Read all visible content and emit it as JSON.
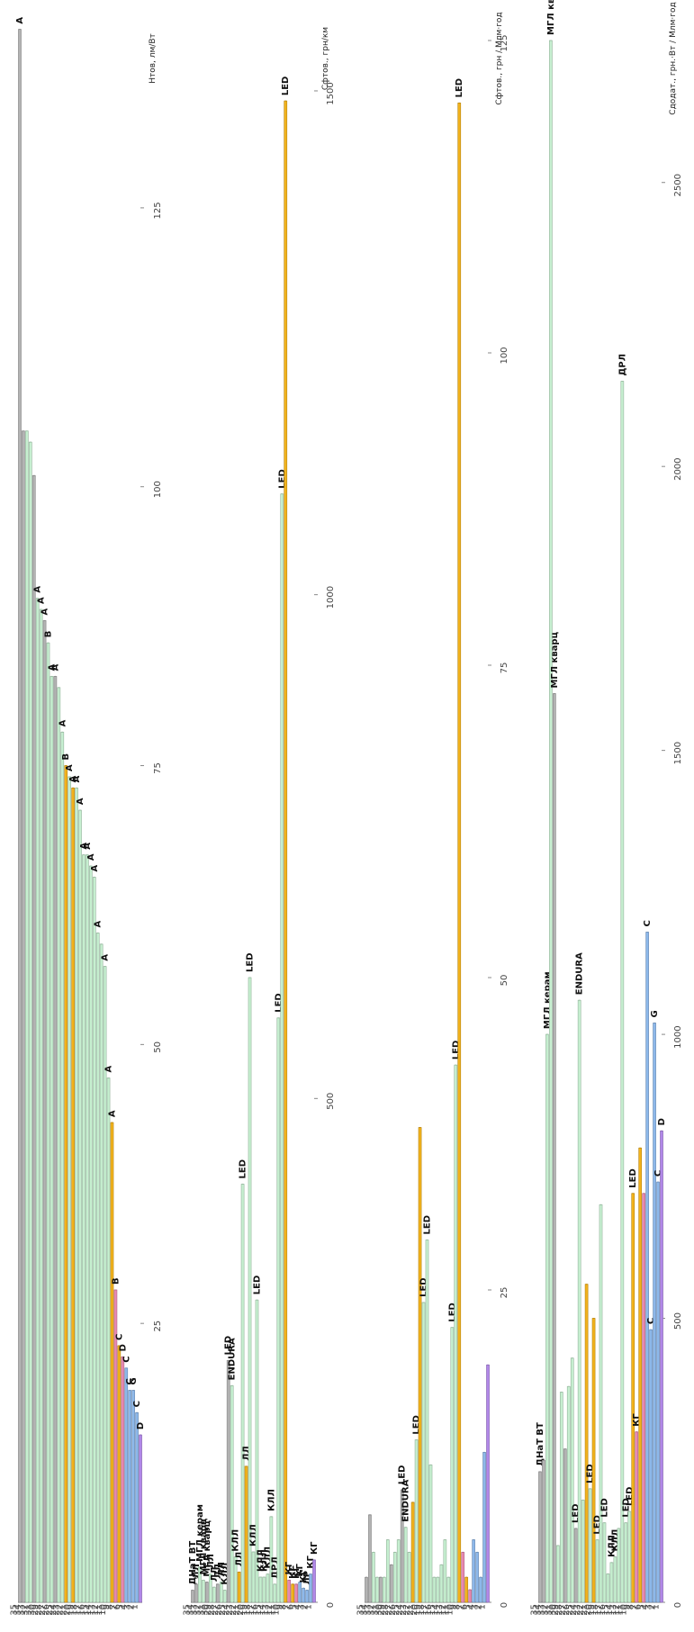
{
  "palette": {
    "gray": "#b3b3b3",
    "green": "#c6efd0",
    "yellow": "#f2b21c",
    "pink": "#e889b0",
    "blue": "#8db8ea",
    "purple": "#b188e8"
  },
  "category_numbers": [
    "35",
    "34",
    "33",
    "32",
    "31",
    "30",
    "29",
    "28",
    "27",
    "26",
    "25",
    "24",
    "23",
    "22",
    "21",
    "20",
    "19",
    "18",
    "17",
    "16",
    "15",
    "14",
    "13",
    "12",
    "11",
    "10",
    "9",
    "8",
    "7",
    "6",
    "5",
    "4",
    "3",
    "2",
    "1"
  ],
  "color_by_number": {
    "35": "gray",
    "34": "gray",
    "33": "green",
    "32": "green",
    "31": "gray",
    "30": "green",
    "29": "green",
    "28": "gray",
    "27": "green",
    "26": "green",
    "25": "gray",
    "24": "green",
    "23": "green",
    "22": "yellow",
    "21": "green",
    "20": "yellow",
    "19": "green",
    "18": "green",
    "17": "green",
    "16": "green",
    "15": "green",
    "14": "green",
    "13": "green",
    "12": "green",
    "11": "green",
    "10": "green",
    "9": "yellow",
    "8": "pink",
    "7": "yellow",
    "6": "pink",
    "5": "blue",
    "4": "blue",
    "3": "blue",
    "2": "blue",
    "1": "purple"
  },
  "chart_data": [
    {
      "type": "bar",
      "orientation": "horizontal",
      "xlabel": "Hтов, лм/Вт",
      "xlim": [
        0,
        140
      ],
      "xticks": [
        "25",
        "50",
        "75",
        "100",
        "125"
      ],
      "xtick_values": [
        25,
        50,
        75,
        100,
        125
      ],
      "values": {
        "35": 141,
        "34": 105,
        "33": 105,
        "32": 104,
        "31": 101,
        "30": 90,
        "29": 89,
        "28": 88,
        "27": 86,
        "26": 83,
        "25": 83,
        "24": 82,
        "23": 78,
        "22": 75,
        "21": 74,
        "20": 73,
        "19": 73,
        "18": 71,
        "17": 67,
        "16": 67,
        "15": 66,
        "14": 65,
        "13": 60,
        "12": 59,
        "11": 57,
        "10": 47,
        "9": 43,
        "8": 28,
        "7": 23,
        "6": 22,
        "5": 21,
        "4": 19,
        "3": 19,
        "2": 17,
        "1": 15
      },
      "labels": {
        "35": "A",
        "30": "A",
        "29": "A",
        "28": "A",
        "27": "B",
        "26": "A",
        "25": "A",
        "23": "A",
        "22": "B",
        "21": "A",
        "20": "A",
        "19": "A",
        "18": "A",
        "17": "A",
        "16": "A",
        "15": "A",
        "14": "A",
        "13": "A",
        "11": "A",
        "10": "A",
        "9": "A",
        "8": "B",
        "7": "C",
        "6": "D",
        "5": "C",
        "4": "C",
        "3": "G",
        "2": "C",
        "1": "D"
      }
    },
    {
      "type": "bar",
      "orientation": "horizontal",
      "xlabel": "Cфтов., грн/км",
      "xlim": [
        0,
        1550
      ],
      "xticks": [
        "0",
        "500",
        "1000",
        "1500"
      ],
      "xtick_values": [
        0,
        500,
        1000,
        1500
      ],
      "values": {
        "35": 12,
        "34": 18,
        "33": 35,
        "32": 22,
        "31": 20,
        "30": 28,
        "29": 15,
        "28": 18,
        "27": 20,
        "26": 12,
        "25": 240,
        "24": 215,
        "23": 45,
        "22": 30,
        "21": 415,
        "20": 135,
        "19": 620,
        "18": 50,
        "17": 300,
        "16": 25,
        "15": 25,
        "14": 28,
        "13": 85,
        "12": 18,
        "11": 580,
        "10": 1100,
        "9": 1490,
        "8": 22,
        "7": 18,
        "6": 18,
        "5": 20,
        "4": 14,
        "3": 12,
        "2": 28,
        "1": 42
      },
      "labels": {
        "35": "ДНаТ ВТ",
        "34": "ЛЛ",
        "33": "МГЛ керам",
        "32": "МГЛ кварц",
        "31": "МГЛ кварц",
        "30": "ЛЛ",
        "29": "ЛЛ",
        "28": "ЛЛ",
        "27": "ЛЛ",
        "26": "КЛЛ",
        "25": "LED",
        "24": "ENDURA",
        "23": "КЛЛ",
        "22": "ЛЛ",
        "21": "LED",
        "20": "ЛЛ",
        "19": "LED",
        "18": "КЛЛ",
        "17": "LED",
        "16": "КЛЛ",
        "15": "КЛЛ",
        "14": "КЛЛ",
        "13": "КЛЛ",
        "12": "ДРЛ",
        "11": "LED",
        "10": "LED",
        "9": "LED",
        "8": "КГ",
        "7": "КГ",
        "6": "КГ",
        "5": "КГ",
        "4": "КГ",
        "3": "ЛР",
        "2": "КГ",
        "1": "КГ"
      }
    },
    {
      "type": "bar",
      "orientation": "horizontal",
      "xlabel": "Cфтов., грн / Млм·год",
      "xlim": [
        0,
        125
      ],
      "xticks": [
        "0",
        "25",
        "50",
        "75",
        "100",
        "125"
      ],
      "xtick_values": [
        0,
        25,
        50,
        75,
        100,
        125
      ],
      "values": {
        "35": 2,
        "34": 7,
        "33": 4,
        "32": 2,
        "31": 2,
        "30": 2,
        "29": 5,
        "28": 3,
        "27": 4,
        "26": 5,
        "25": 9,
        "24": 6,
        "23": 4,
        "22": 8,
        "21": 13,
        "20": 38,
        "19": 24,
        "18": 29,
        "17": 11,
        "16": 2,
        "15": 2,
        "14": 3,
        "13": 5,
        "12": 2,
        "11": 22,
        "10": 43,
        "9": 120,
        "8": 4,
        "7": 2,
        "6": 1,
        "5": 5,
        "4": 4,
        "3": 2,
        "2": 12,
        "1": 19
      },
      "labels": {
        "25": "LED",
        "24": "ENDURA",
        "21": "LED",
        "19": "LED",
        "18": "LED",
        "11": "LED",
        "10": "LED",
        "9": "LED"
      }
    },
    {
      "type": "bar",
      "orientation": "horizontal",
      "xlabel": "Cдодат., грн.·Вт / Млм·год",
      "xlim": [
        0,
        2750
      ],
      "xticks": [
        "0",
        "500",
        "1000",
        "1500",
        "2000",
        "2500"
      ],
      "xtick_values": [
        0,
        500,
        1000,
        1500,
        2000,
        2500
      ],
      "values": {
        "35": 230,
        "34": 250,
        "33": 1000,
        "32": 2750,
        "31": 1600,
        "30": 100,
        "29": 370,
        "28": 270,
        "27": 380,
        "26": 430,
        "25": 130,
        "24": 1060,
        "23": 180,
        "22": 560,
        "21": 200,
        "20": 500,
        "19": 110,
        "18": 700,
        "17": 140,
        "16": 50,
        "15": 70,
        "14": 80,
        "13": 130,
        "12": 2150,
        "11": 140,
        "10": 160,
        "9": 720,
        "8": 300,
        "7": 800,
        "6": 720,
        "5": 1180,
        "4": 480,
        "3": 1020,
        "2": 740,
        "1": 830
      },
      "labels": {
        "35": "ДНаТ ВТ",
        "33": "МГЛ керам",
        "32": "МГЛ кварц",
        "31": "МГЛ кварц",
        "25": "LED",
        "24": "ENDURA",
        "21": "LED",
        "19": "LED",
        "17": "LED",
        "15": "КЛЛ",
        "14": "КЛЛ",
        "12": "ДРЛ",
        "11": "LED",
        "10": "LED",
        "9": "LED",
        "8": "КГ",
        "5": "С",
        "4": "С",
        "3": "G",
        "2": "С",
        "1": "D"
      }
    }
  ]
}
